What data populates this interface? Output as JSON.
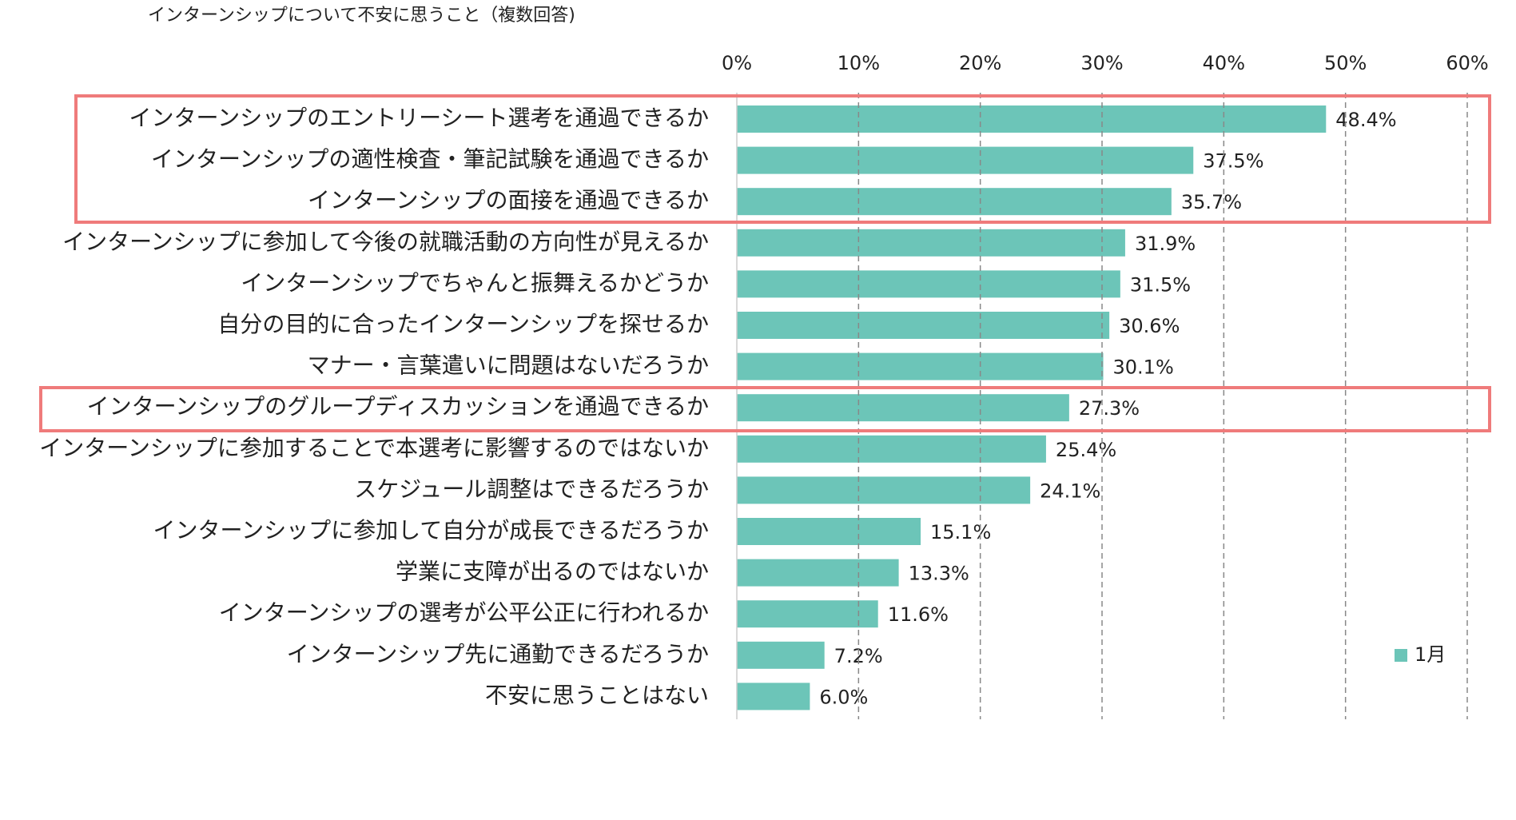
{
  "chart_data": {
    "type": "hbar",
    "title": "インターンシップについて不安に思うこと（複数回答)",
    "categories": [
      "インターンシップのエントリーシート選考を通過できるか",
      "インターンシップの適性検査・筆記試験を通過できるか",
      "インターンシップの面接を通過できるか",
      "インターンシップに参加して今後の就職活動の方向性が見えるか",
      "インターンシップでちゃんと振舞えるかどうか",
      "自分の目的に合ったインターンシップを探せるか",
      "マナー・言葉遣いに問題はないだろうか",
      "インターンシップのグループディスカッションを通過できるか",
      "インターンシップに参加することで本選考に影響するのではないか",
      "スケジュール調整はできるだろうか",
      "インターンシップに参加して自分が成長できるだろうか",
      "学業に支障が出るのではないか",
      "インターンシップの選考が公平公正に行われるか",
      "インターンシップ先に通勤できるだろうか",
      "不安に思うことはない"
    ],
    "series": [
      {
        "name": "1月",
        "color": "#6cc5b8",
        "values": [
          48.4,
          37.5,
          35.7,
          31.9,
          31.5,
          30.6,
          30.1,
          27.3,
          25.4,
          24.1,
          15.1,
          13.3,
          11.6,
          7.2,
          6.0
        ],
        "value_labels": [
          "48.4%",
          "37.5%",
          "35.7%",
          "31.9%",
          "31.5%",
          "30.6%",
          "30.1%",
          "27.3%",
          "25.4%",
          "24.1%",
          "15.1%",
          "13.3%",
          "11.6%",
          "7.2%",
          "6.0%"
        ]
      }
    ],
    "xlim": [
      0,
      60
    ],
    "xticks": [
      {
        "value": 0,
        "label": "0%"
      },
      {
        "value": 10,
        "label": "10%"
      },
      {
        "value": 20,
        "label": "20%"
      },
      {
        "value": 30,
        "label": "30%"
      },
      {
        "value": 40,
        "label": "40%"
      },
      {
        "value": 50,
        "label": "50%"
      },
      {
        "value": 60,
        "label": "60%"
      }
    ],
    "grid": true,
    "legend": "lower-right"
  }
}
